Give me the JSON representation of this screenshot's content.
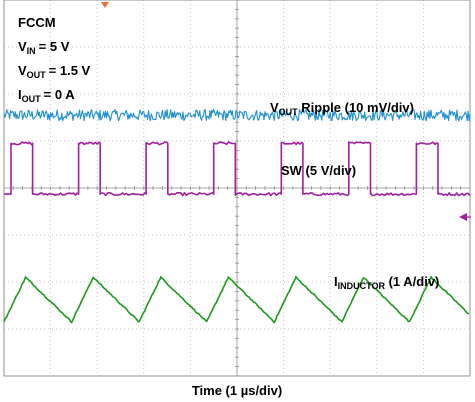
{
  "chart_data": {
    "type": "line",
    "title": "",
    "xlabel": "Time (1  µs/div)",
    "ylabel": "",
    "grid": true,
    "x_divisions": 10,
    "y_divisions": 8,
    "conditions": {
      "mode": "FCCM",
      "vin": {
        "sub": "IN",
        "value": "= 5 V"
      },
      "vout": {
        "sub": "OUT",
        "value": "= 1.5 V"
      },
      "iout": {
        "sub": "OUT",
        "value": "= 0 A"
      }
    },
    "series": [
      {
        "id": "vout",
        "name_prefix": "V",
        "name_sub": "OUT",
        "name_suffix": "  Ripple (10 mV/div)",
        "shape": "noise",
        "color": "#1f8fd0",
        "level_div": 5.55,
        "amplitude_div": 0.12
      },
      {
        "id": "sw",
        "name_prefix": "",
        "name_sub": "",
        "name_suffix": "SW (5 V/div)",
        "shape": "square",
        "color": "#a020a0",
        "period_div": 1.45,
        "duty": 0.32,
        "low_level_div": 3.87,
        "high_level_div": 4.95
      },
      {
        "id": "iind",
        "name_prefix": "I",
        "name_sub": "INDUCTOR",
        "name_suffix": " (1 A/div)",
        "shape": "triangle",
        "color": "#1a9a1a",
        "period_div": 1.45,
        "duty": 0.32,
        "min_level_div": 1.15,
        "max_level_div": 2.1
      }
    ]
  }
}
